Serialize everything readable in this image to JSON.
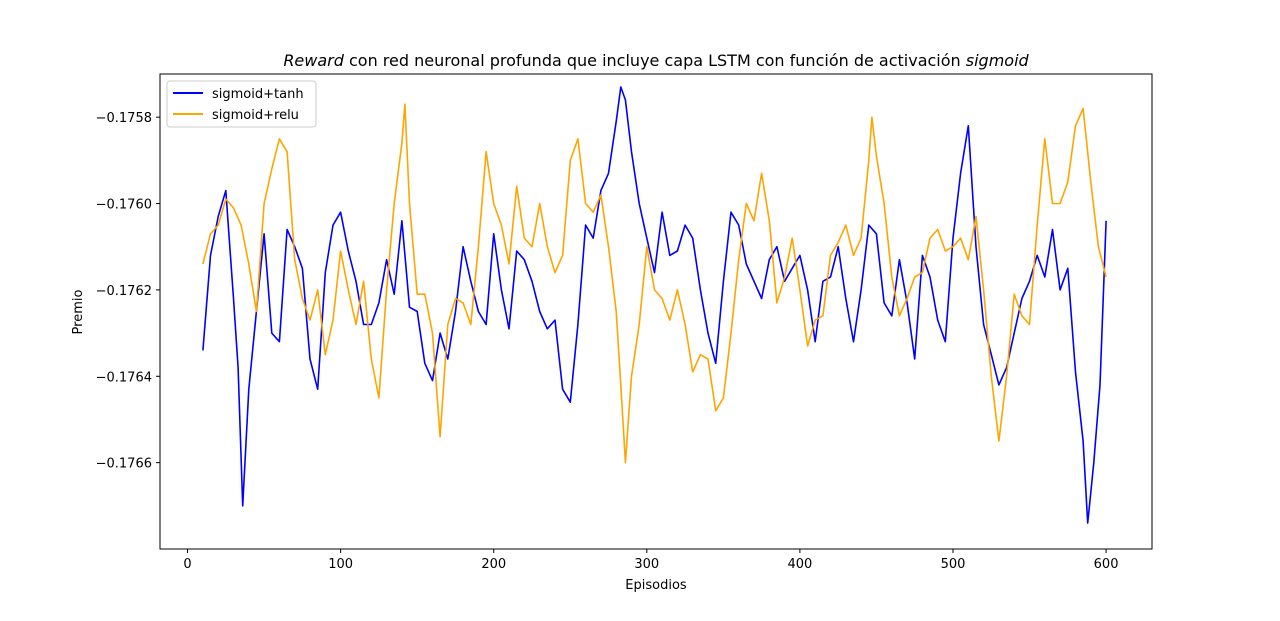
{
  "chart_data": {
    "type": "line",
    "title_italic_1": "Reward",
    "title_plain": " con red neuronal profunda que incluye capa LSTM con función de activación ",
    "title_italic_2": "sigmoid",
    "xlabel": "Episodios",
    "ylabel": "Premio",
    "xlim": [
      -18,
      630
    ],
    "ylim": [
      -0.1768,
      -0.1757
    ],
    "xticks": [
      0,
      100,
      200,
      300,
      400,
      500,
      600
    ],
    "xtick_labels": [
      "0",
      "100",
      "200",
      "300",
      "400",
      "500",
      "600"
    ],
    "yticks": [
      -0.1766,
      -0.1764,
      -0.1762,
      -0.176,
      -0.1758
    ],
    "ytick_labels": [
      "−0.1766",
      "−0.1764",
      "−0.1762",
      "−0.1760",
      "−0.1758"
    ],
    "legend_position": "upper-left",
    "grid": false,
    "series": [
      {
        "name": "sigmoid+tanh",
        "color": "#0000ff",
        "x": [
          10,
          15,
          20,
          25,
          30,
          33,
          36,
          40,
          45,
          50,
          55,
          60,
          65,
          70,
          75,
          80,
          85,
          90,
          95,
          100,
          105,
          110,
          115,
          120,
          125,
          130,
          135,
          140,
          145,
          150,
          155,
          160,
          165,
          170,
          175,
          180,
          185,
          190,
          195,
          200,
          205,
          210,
          215,
          220,
          225,
          230,
          235,
          240,
          245,
          250,
          255,
          260,
          265,
          270,
          275,
          280,
          283,
          286,
          290,
          295,
          300,
          305,
          310,
          315,
          320,
          325,
          330,
          335,
          340,
          345,
          350,
          355,
          360,
          365,
          370,
          375,
          380,
          385,
          390,
          395,
          400,
          405,
          410,
          415,
          420,
          425,
          430,
          435,
          440,
          445,
          450,
          455,
          460,
          465,
          470,
          475,
          480,
          485,
          490,
          495,
          500,
          505,
          510,
          515,
          520,
          525,
          530,
          535,
          540,
          545,
          550,
          555,
          560,
          565,
          570,
          575,
          580,
          585,
          588,
          592,
          596,
          600
        ],
        "y": [
          -0.17634,
          -0.17612,
          -0.17603,
          -0.17597,
          -0.17622,
          -0.17638,
          -0.1767,
          -0.17643,
          -0.17625,
          -0.17607,
          -0.1763,
          -0.17632,
          -0.17606,
          -0.1761,
          -0.17615,
          -0.17636,
          -0.17643,
          -0.17616,
          -0.17605,
          -0.17602,
          -0.17611,
          -0.17618,
          -0.17628,
          -0.17628,
          -0.17623,
          -0.17613,
          -0.17621,
          -0.17604,
          -0.17624,
          -0.17625,
          -0.17637,
          -0.17641,
          -0.1763,
          -0.17636,
          -0.17625,
          -0.1761,
          -0.17618,
          -0.17625,
          -0.17628,
          -0.17607,
          -0.1762,
          -0.17629,
          -0.17611,
          -0.17613,
          -0.17618,
          -0.17625,
          -0.17629,
          -0.17627,
          -0.17643,
          -0.17646,
          -0.17628,
          -0.17605,
          -0.17608,
          -0.17597,
          -0.17593,
          -0.17581,
          -0.17573,
          -0.17576,
          -0.17588,
          -0.176,
          -0.17608,
          -0.17616,
          -0.17602,
          -0.17612,
          -0.17611,
          -0.17605,
          -0.17608,
          -0.1762,
          -0.1763,
          -0.17637,
          -0.17618,
          -0.17602,
          -0.17605,
          -0.17614,
          -0.17618,
          -0.17622,
          -0.17613,
          -0.1761,
          -0.17618,
          -0.17615,
          -0.17612,
          -0.1762,
          -0.17632,
          -0.17618,
          -0.17617,
          -0.1761,
          -0.17622,
          -0.17632,
          -0.1762,
          -0.17605,
          -0.17607,
          -0.17623,
          -0.17626,
          -0.17613,
          -0.17623,
          -0.17636,
          -0.17612,
          -0.17617,
          -0.17627,
          -0.17632,
          -0.17608,
          -0.17593,
          -0.17582,
          -0.1761,
          -0.17628,
          -0.17635,
          -0.17642,
          -0.17638,
          -0.1763,
          -0.17622,
          -0.17618,
          -0.17612,
          -0.17617,
          -0.17606,
          -0.1762,
          -0.17615,
          -0.17639,
          -0.17655,
          -0.17674,
          -0.1766,
          -0.17642,
          -0.17604
        ]
      },
      {
        "name": "sigmoid+relu",
        "color": "#ffa500",
        "x": [
          10,
          15,
          20,
          25,
          30,
          35,
          40,
          45,
          50,
          55,
          60,
          65,
          70,
          75,
          80,
          85,
          90,
          95,
          100,
          105,
          110,
          115,
          120,
          125,
          130,
          135,
          140,
          142,
          145,
          150,
          155,
          160,
          165,
          170,
          175,
          180,
          185,
          190,
          195,
          200,
          205,
          210,
          215,
          220,
          225,
          230,
          235,
          240,
          245,
          250,
          255,
          260,
          265,
          270,
          275,
          280,
          283,
          286,
          290,
          295,
          300,
          305,
          310,
          315,
          320,
          325,
          330,
          335,
          340,
          345,
          350,
          355,
          360,
          365,
          370,
          375,
          380,
          385,
          390,
          395,
          400,
          405,
          410,
          415,
          420,
          425,
          430,
          435,
          440,
          445,
          447,
          450,
          455,
          460,
          465,
          470,
          475,
          480,
          485,
          490,
          495,
          500,
          505,
          510,
          515,
          520,
          525,
          530,
          535,
          540,
          545,
          550,
          555,
          560,
          565,
          570,
          575,
          580,
          585,
          590,
          595,
          600
        ],
        "y": [
          -0.17614,
          -0.17607,
          -0.17605,
          -0.17599,
          -0.17601,
          -0.17605,
          -0.17614,
          -0.17625,
          -0.176,
          -0.17592,
          -0.17585,
          -0.17588,
          -0.17613,
          -0.17622,
          -0.17627,
          -0.1762,
          -0.17635,
          -0.17627,
          -0.17611,
          -0.1762,
          -0.17628,
          -0.17618,
          -0.17636,
          -0.17645,
          -0.1762,
          -0.176,
          -0.17586,
          -0.17577,
          -0.176,
          -0.17621,
          -0.17621,
          -0.1763,
          -0.17654,
          -0.17628,
          -0.17622,
          -0.17623,
          -0.17628,
          -0.1761,
          -0.17588,
          -0.176,
          -0.17605,
          -0.17614,
          -0.17596,
          -0.17608,
          -0.1761,
          -0.176,
          -0.1761,
          -0.17616,
          -0.17612,
          -0.1759,
          -0.17585,
          -0.176,
          -0.17602,
          -0.17598,
          -0.1761,
          -0.17625,
          -0.17642,
          -0.1766,
          -0.1764,
          -0.17628,
          -0.1761,
          -0.1762,
          -0.17622,
          -0.17627,
          -0.1762,
          -0.17628,
          -0.17639,
          -0.17635,
          -0.17636,
          -0.17648,
          -0.17645,
          -0.1763,
          -0.17613,
          -0.176,
          -0.17604,
          -0.17593,
          -0.17604,
          -0.17623,
          -0.17617,
          -0.17608,
          -0.1762,
          -0.17633,
          -0.17627,
          -0.17626,
          -0.17612,
          -0.17609,
          -0.17605,
          -0.17612,
          -0.17608,
          -0.1759,
          -0.1758,
          -0.17589,
          -0.176,
          -0.17617,
          -0.17626,
          -0.17622,
          -0.17617,
          -0.17616,
          -0.17608,
          -0.17606,
          -0.17611,
          -0.1761,
          -0.17608,
          -0.17613,
          -0.17603,
          -0.1762,
          -0.1764,
          -0.17655,
          -0.1764,
          -0.17621,
          -0.17626,
          -0.17628,
          -0.17605,
          -0.17585,
          -0.176,
          -0.176,
          -0.17595,
          -0.17582,
          -0.17578,
          -0.17595,
          -0.1761,
          -0.17617
        ]
      }
    ]
  }
}
